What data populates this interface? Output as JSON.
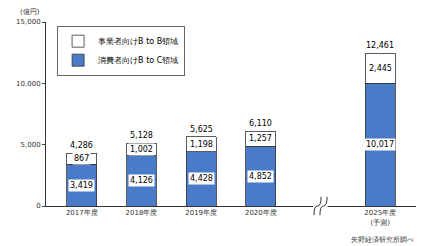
{
  "chart_data": {
    "type": "bar",
    "stacked": true,
    "data_labels": true,
    "grid": false,
    "legend": "top-left",
    "ylabel": "(億円)",
    "source": "矢野経済研究所調べ",
    "categories": [
      "2017年度",
      "2018年度",
      "2019年度",
      "2020年度",
      null,
      "2025年度\n(予測)"
    ],
    "series": [
      {
        "name": "消費者向けB to C領域",
        "color": "#4a7bc8",
        "values": [
          3419,
          4126,
          4428,
          4852,
          null,
          10017
        ],
        "value_labels": [
          "3,419",
          "4,126",
          "4,428",
          "4,852",
          null,
          "10,017"
        ]
      },
      {
        "name": "事業者向けB to B領域",
        "color": "#ffffff",
        "values": [
          867,
          1002,
          1198,
          1257,
          null,
          2445
        ],
        "value_labels": [
          "867",
          "1,002",
          "1,198",
          "1,257",
          null,
          "2,445"
        ]
      }
    ],
    "totals": [
      4286,
      5128,
      5625,
      6110,
      null,
      12461
    ],
    "total_labels": [
      "4,286",
      "5,128",
      "5,625",
      "6,110",
      null,
      "12,461"
    ],
    "ylim": [
      0,
      15000
    ],
    "yticks": [
      0,
      {
        "value": 5000,
        "label": "5,000"
      },
      {
        "value": 10000,
        "label": "10,000"
      },
      {
        "value": 15000,
        "label": "15,000"
      }
    ]
  }
}
